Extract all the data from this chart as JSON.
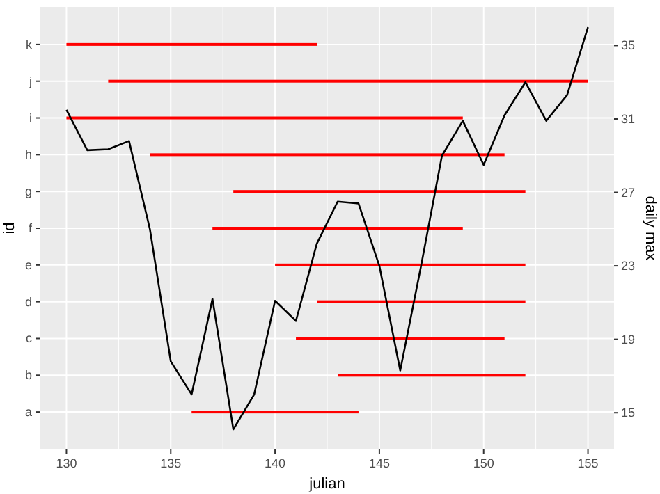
{
  "chart_data": [
    {
      "type": "bar",
      "orientation": "horizontal",
      "xlabel": "julian",
      "ylabel": "id",
      "categories": [
        "k",
        "j",
        "i",
        "h",
        "g",
        "f",
        "e",
        "d",
        "c",
        "b",
        "a"
      ],
      "xlim": [
        128.75,
        156.25
      ],
      "xticks": [
        130,
        135,
        140,
        145,
        150,
        155
      ],
      "grid": true,
      "series": [
        {
          "color": "#ff0000",
          "base": [
            130,
            132,
            130,
            134,
            138,
            137,
            140,
            142,
            141,
            143,
            136
          ],
          "values": [
            12,
            23,
            19,
            17,
            14,
            12,
            12,
            10,
            10,
            9,
            8
          ]
        }
      ]
    },
    {
      "type": "line",
      "y2label": "daily max",
      "tick_labels": "y",
      "xlim": [
        128.75,
        156.25
      ],
      "xticks": [
        130,
        135,
        140,
        145,
        150,
        155
      ],
      "y2lim": [
        13,
        37.1
      ],
      "y2ticks": [
        15,
        19,
        23,
        27,
        31,
        35
      ],
      "series": [
        {
          "axis": "y2",
          "color": "#000000",
          "x": [
            130,
            131,
            132,
            133,
            134,
            135,
            136,
            137,
            138,
            139,
            140,
            141,
            142,
            143,
            144,
            145,
            146,
            147,
            148,
            149,
            150,
            151,
            152,
            153,
            154,
            155
          ],
          "values": [
            31.5,
            29.3,
            29.35,
            29.8,
            25,
            17.8,
            16,
            21.2,
            14.1,
            16,
            21.1,
            20,
            24.2,
            26.5,
            26.4,
            23,
            17.3,
            23,
            29,
            30.9,
            28.5,
            31.2,
            33,
            30.9,
            32.3,
            36
          ]
        }
      ]
    }
  ]
}
